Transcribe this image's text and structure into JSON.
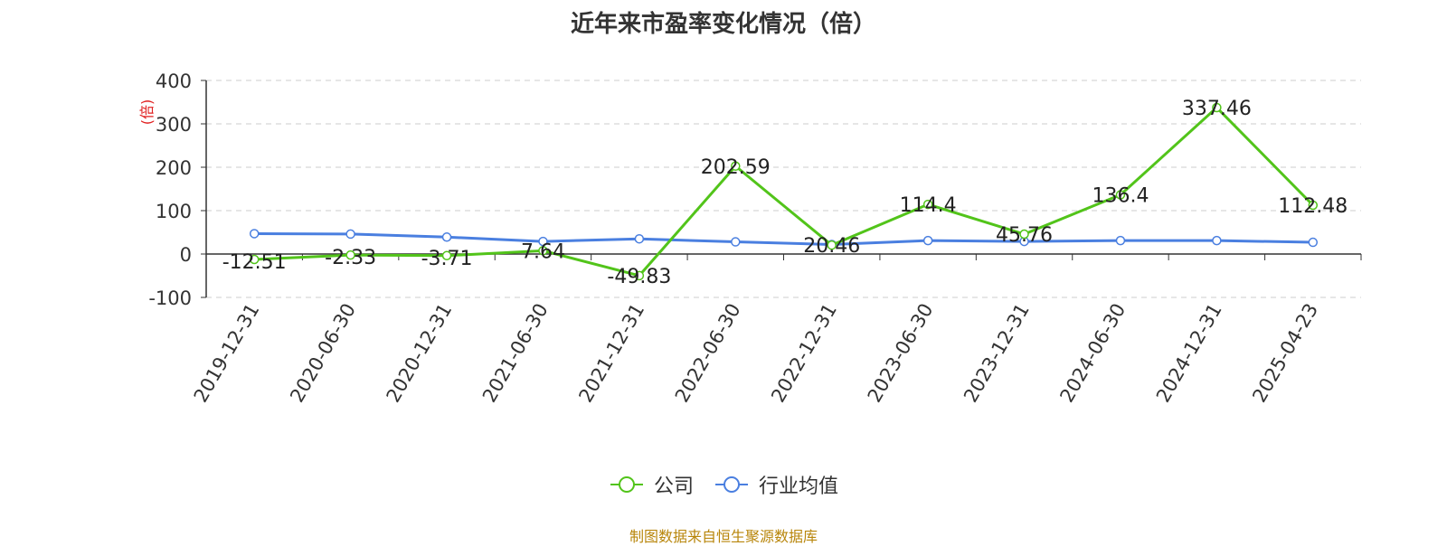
{
  "title": "近年来市盈率变化情况（倍）",
  "footer": "制图数据来自恒生聚源数据库",
  "colors": {
    "company": "#52c41a",
    "industry": "#4a7fe0",
    "unit": "#e02020",
    "axis": "#333333",
    "grid": "#cccccc"
  },
  "chart_data": {
    "type": "line",
    "title": "近年来市盈率变化情况（倍）",
    "ylabel": "(倍)",
    "ylim": [
      -100,
      400
    ],
    "yticks": [
      -100,
      0,
      100,
      200,
      300,
      400
    ],
    "grid": true,
    "legend_position": "bottom",
    "categories": [
      "2019-12-31",
      "2020-06-30",
      "2020-12-31",
      "2021-06-30",
      "2021-12-31",
      "2022-06-30",
      "2022-12-31",
      "2023-06-30",
      "2023-12-31",
      "2024-06-30",
      "2024-12-31",
      "2025-04-23"
    ],
    "series": [
      {
        "name": "公司",
        "values": [
          -12.51,
          -2.33,
          -3.71,
          7.64,
          -49.83,
          202.59,
          20.46,
          114.4,
          45.76,
          136.4,
          337.46,
          112.48
        ],
        "labels": [
          "-12.51",
          "-2.33",
          "-3.71",
          "7.64",
          "-49.83",
          "202.59",
          "20.46",
          "114.4",
          "45.76",
          "136.4",
          "337.46",
          "112.48"
        ]
      },
      {
        "name": "行业均值",
        "values": [
          47,
          46,
          39,
          29,
          35,
          28,
          22,
          31,
          29,
          31,
          31,
          27
        ]
      }
    ]
  }
}
